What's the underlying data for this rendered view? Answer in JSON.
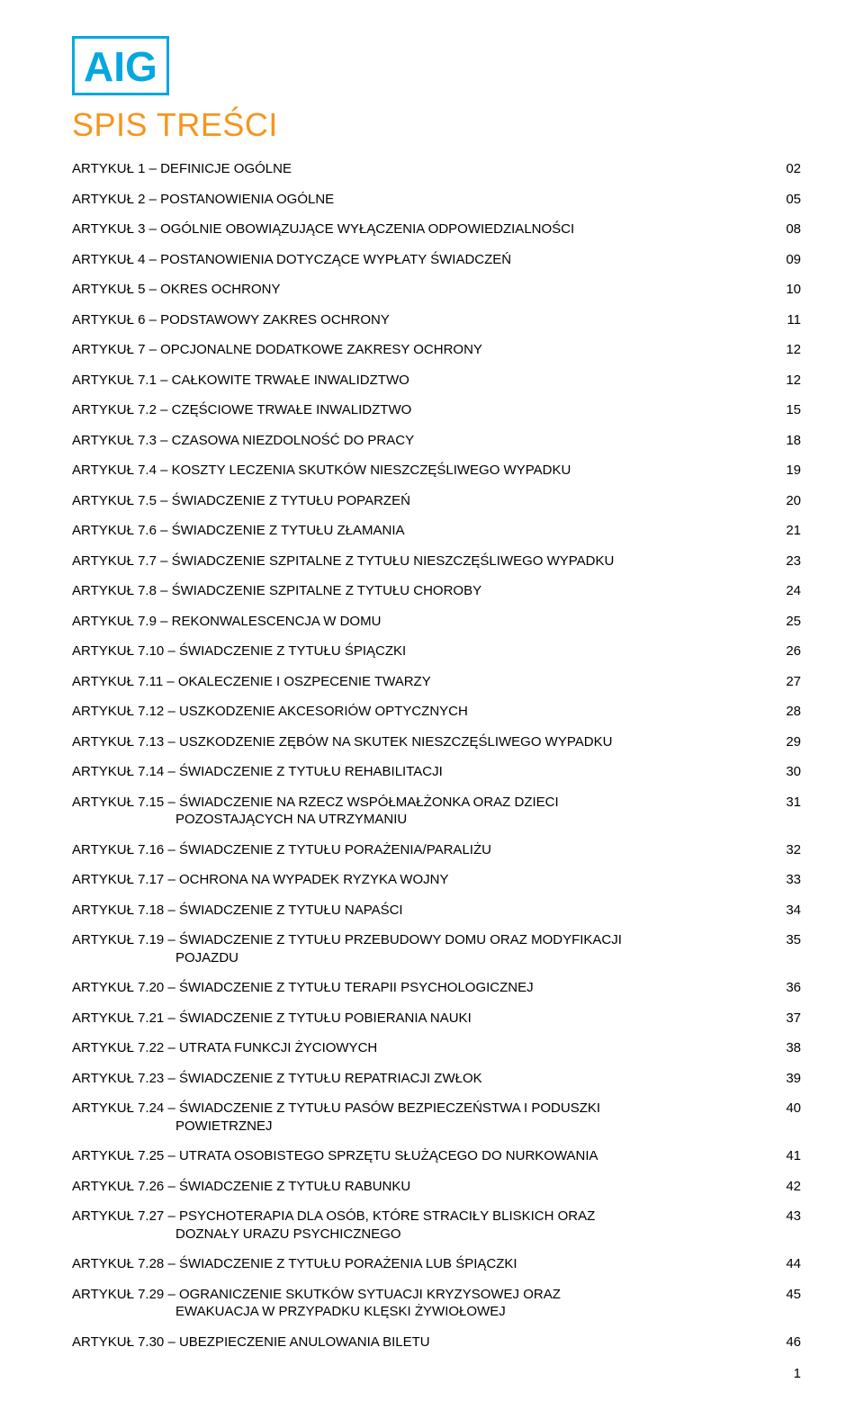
{
  "logo": {
    "text": "AIG",
    "border_color": "#05a7e0",
    "text_color": "#05a7e0"
  },
  "heading": {
    "text": "SPIS TREŚCI",
    "color": "#f7941d"
  },
  "colors": {
    "text": "#000000",
    "background": "#ffffff"
  },
  "typography": {
    "body_fontsize": 15,
    "heading_fontsize": 36,
    "logo_fontsize": 46
  },
  "toc": [
    {
      "title": "ARTYKUŁ 1 – DEFINICJE OGÓLNE",
      "page": "02"
    },
    {
      "title": "ARTYKUŁ 2 – POSTANOWIENIA OGÓLNE",
      "page": "05"
    },
    {
      "title": "ARTYKUŁ 3 – OGÓLNIE OBOWIĄZUJĄCE WYŁĄCZENIA ODPOWIEDZIALNOŚCI",
      "page": "08"
    },
    {
      "title": "ARTYKUŁ 4 – POSTANOWIENIA DOTYCZĄCE WYPŁATY ŚWIADCZEŃ",
      "page": "09"
    },
    {
      "title": "ARTYKUŁ 5 – OKRES OCHRONY",
      "page": "10"
    },
    {
      "title": "ARTYKUŁ 6 – PODSTAWOWY ZAKRES OCHRONY",
      "page": "11"
    },
    {
      "title": "ARTYKUŁ 7 – OPCJONALNE DODATKOWE ZAKRESY OCHRONY",
      "page": "12"
    },
    {
      "title": "ARTYKUŁ 7.1 – CAŁKOWITE TRWAŁE INWALIDZTWO",
      "page": "12"
    },
    {
      "title": "ARTYKUŁ 7.2 – CZĘŚCIOWE TRWAŁE INWALIDZTWO",
      "page": "15"
    },
    {
      "title": "ARTYKUŁ 7.3 – CZASOWA NIEZDOLNOŚĆ DO PRACY",
      "page": "18"
    },
    {
      "title": "ARTYKUŁ 7.4 – KOSZTY LECZENIA SKUTKÓW NIESZCZĘŚLIWEGO WYPADKU",
      "page": "19"
    },
    {
      "title": "ARTYKUŁ 7.5 – ŚWIADCZENIE Z TYTUŁU POPARZEŃ",
      "page": "20"
    },
    {
      "title": "ARTYKUŁ 7.6 – ŚWIADCZENIE Z TYTUŁU ZŁAMANIA",
      "page": "21"
    },
    {
      "title": "ARTYKUŁ 7.7 – ŚWIADCZENIE SZPITALNE Z TYTUŁU NIESZCZĘŚLIWEGO WYPADKU",
      "page": "23"
    },
    {
      "title": "ARTYKUŁ 7.8 – ŚWIADCZENIE SZPITALNE Z TYTUŁU CHOROBY",
      "page": "24"
    },
    {
      "title": "ARTYKUŁ 7.9 – REKONWALESCENCJA W DOMU",
      "page": "25"
    },
    {
      "title": "ARTYKUŁ 7.10 – ŚWIADCZENIE Z TYTUŁU ŚPIĄCZKI",
      "page": "26"
    },
    {
      "title": "ARTYKUŁ 7.11 – OKALECZENIE I OSZPECENIE TWARZY",
      "page": "27"
    },
    {
      "title": "ARTYKUŁ 7.12 – USZKODZENIE AKCESORIÓW OPTYCZNYCH",
      "page": "28"
    },
    {
      "title": "ARTYKUŁ 7.13 – USZKODZENIE ZĘBÓW NA SKUTEK NIESZCZĘŚLIWEGO WYPADKU",
      "page": "29"
    },
    {
      "title": "ARTYKUŁ 7.14 – ŚWIADCZENIE Z TYTUŁU REHABILITACJI",
      "page": "30"
    },
    {
      "title": "ARTYKUŁ 7.15 – ŚWIADCZENIE NA RZECZ WSPÓŁMAŁŻONKA ORAZ DZIECI",
      "title2": "POZOSTAJĄCYCH NA UTRZYMANIU",
      "page": "31"
    },
    {
      "title": "ARTYKUŁ 7.16 – ŚWIADCZENIE Z TYTUŁU PORAŻENIA/PARALIŻU",
      "page": "32"
    },
    {
      "title": "ARTYKUŁ 7.17 – OCHRONA NA WYPADEK RYZYKA WOJNY",
      "page": "33"
    },
    {
      "title": "ARTYKUŁ 7.18 – ŚWIADCZENIE Z TYTUŁU NAPAŚCI",
      "page": "34"
    },
    {
      "title": "ARTYKUŁ 7.19 – ŚWIADCZENIE Z TYTUŁU PRZEBUDOWY DOMU ORAZ MODYFIKACJI",
      "title2": "POJAZDU",
      "page": "35"
    },
    {
      "title": "ARTYKUŁ 7.20 – ŚWIADCZENIE Z TYTUŁU TERAPII PSYCHOLOGICZNEJ",
      "page": "36"
    },
    {
      "title": "ARTYKUŁ 7.21 – ŚWIADCZENIE Z TYTUŁU POBIERANIA NAUKI",
      "page": "37"
    },
    {
      "title": "ARTYKUŁ 7.22 – UTRATA FUNKCJI ŻYCIOWYCH",
      "page": "38"
    },
    {
      "title": "ARTYKUŁ 7.23 – ŚWIADCZENIE Z TYTUŁU REPATRIACJI ZWŁOK",
      "page": "39"
    },
    {
      "title": "ARTYKUŁ 7.24 – ŚWIADCZENIE Z TYTUŁU PASÓW BEZPIECZEŃSTWA I PODUSZKI",
      "title2": "POWIETRZNEJ",
      "page": "40"
    },
    {
      "title": "ARTYKUŁ 7.25 – UTRATA OSOBISTEGO SPRZĘTU SŁUŻĄCEGO DO NURKOWANIA",
      "page": "41"
    },
    {
      "title": "ARTYKUŁ 7.26 – ŚWIADCZENIE Z TYTUŁU RABUNKU",
      "page": "42"
    },
    {
      "title": "ARTYKUŁ 7.27 – PSYCHOTERAPIA DLA OSÓB, KTÓRE STRACIŁY BLISKICH ORAZ",
      "title2": "DOZNAŁY URAZU PSYCHICZNEGO",
      "page": "43"
    },
    {
      "title": "ARTYKUŁ 7.28 – ŚWIADCZENIE Z TYTUŁU PORAŻENIA LUB ŚPIĄCZKI",
      "page": "44"
    },
    {
      "title": "ARTYKUŁ 7.29 – OGRANICZENIE SKUTKÓW SYTUACJI KRYZYSOWEJ ORAZ",
      "title2": "EWAKUACJA W PRZYPADKU KLĘSKI ŻYWIOŁOWEJ",
      "page": "45"
    },
    {
      "title": "ARTYKUŁ 7.30 – UBEZPIECZENIE ANULOWANIA BILETU",
      "page": "46"
    }
  ],
  "page_number": "1"
}
